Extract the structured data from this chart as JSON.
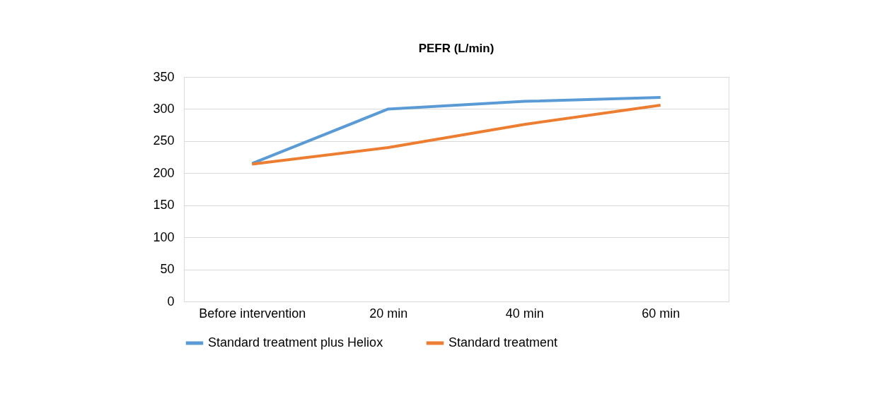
{
  "chart_data": {
    "type": "line",
    "title": "PEFR (L/min)",
    "categories": [
      "Before intervention",
      "20 min",
      "40 min",
      "60 min"
    ],
    "series": [
      {
        "name": "Standard treatment plus Heliox",
        "color": "#5b9bd5",
        "values": [
          215,
          300,
          312,
          318
        ]
      },
      {
        "name": "Standard treatment",
        "color": "#ed7d31",
        "values": [
          214,
          240,
          276,
          306
        ]
      }
    ],
    "ylim": [
      0,
      350
    ],
    "yticks": [
      0,
      50,
      100,
      150,
      200,
      250,
      300,
      350
    ],
    "grid": "y",
    "legend": "bottom",
    "marker": "none",
    "line_style": "solid"
  }
}
